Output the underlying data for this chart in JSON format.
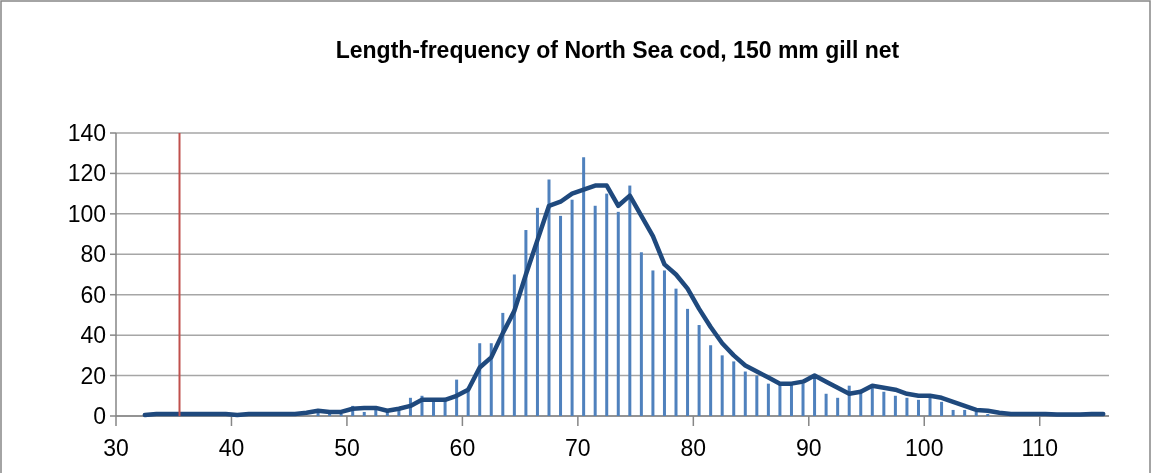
{
  "chart_data": {
    "type": "bar",
    "title": "Length-frequency of North Sea cod, 150 mm gill net",
    "xlim": [
      30,
      116
    ],
    "xticks": [
      30,
      40,
      50,
      60,
      70,
      80,
      90,
      100,
      110
    ],
    "ylim": [
      0,
      140
    ],
    "yticks": [
      0,
      20,
      40,
      60,
      80,
      100,
      120,
      140
    ],
    "grid": "y",
    "ref_lines": [
      {
        "axis": "x",
        "value": 35.5,
        "color": "#c0504d"
      }
    ],
    "series": [
      {
        "color": "#4f81bd",
        "x": [
          47.5,
          48.5,
          49.5,
          50.5,
          51.5,
          52.5,
          53.5,
          54.5,
          55.5,
          56.5,
          57.5,
          58.5,
          59.5,
          60.5,
          61.5,
          62.5,
          63.5,
          64.5,
          65.5,
          66.5,
          67.5,
          68.5,
          69.5,
          70.5,
          71.5,
          72.5,
          73.5,
          74.5,
          75.5,
          76.5,
          77.5,
          78.5,
          79.5,
          80.5,
          81.5,
          82.5,
          83.5,
          84.5,
          85.5,
          86.5,
          87.5,
          88.5,
          89.5,
          90.5,
          91.5,
          92.5,
          93.5,
          94.5,
          95.5,
          96.5,
          97.5,
          98.5,
          99.5,
          100.5,
          101.5,
          102.5,
          103.5,
          104.5,
          105.5
        ],
        "values": [
          2,
          1,
          1,
          5,
          2,
          3,
          2,
          3,
          9,
          10,
          8,
          9,
          18,
          14,
          36,
          36,
          51,
          70,
          92,
          103,
          117,
          99,
          107,
          128,
          104,
          110,
          101,
          114,
          81,
          72,
          72,
          63,
          53,
          45,
          35,
          30,
          27,
          22,
          20,
          16,
          16,
          16,
          16,
          20,
          11,
          9,
          15,
          13,
          14,
          12,
          10,
          9,
          8,
          9,
          7,
          3,
          3,
          2,
          1
        ]
      },
      {
        "type": "line",
        "color": "#1f497d",
        "x": [
          32.5,
          33.5,
          34.5,
          35.5,
          36.5,
          37.5,
          38.5,
          39.5,
          40.5,
          41.5,
          42.5,
          43.5,
          44.5,
          45.5,
          46.5,
          47.5,
          48.5,
          49.5,
          50.5,
          51.5,
          52.5,
          53.5,
          54.5,
          55.5,
          56.5,
          57.5,
          58.5,
          59.5,
          60.5,
          61.5,
          62.5,
          63.5,
          64.5,
          65.5,
          66.5,
          67.5,
          68.5,
          69.5,
          70.5,
          71.5,
          72.5,
          73.5,
          74.5,
          75.5,
          76.5,
          77.5,
          78.5,
          79.5,
          80.5,
          81.5,
          82.5,
          83.5,
          84.5,
          85.5,
          86.5,
          87.5,
          88.5,
          89.5,
          90.5,
          91.5,
          92.5,
          93.5,
          94.5,
          95.5,
          96.5,
          97.5,
          98.5,
          99.5,
          100.5,
          101.5,
          102.5,
          103.5,
          104.5,
          105.5,
          106.5,
          107.5,
          108.5,
          109.5,
          110.5,
          111.5,
          112.5,
          113.5,
          114.5,
          115.5
        ],
        "values": [
          0.5,
          1,
          1,
          1,
          1,
          1,
          1,
          1,
          0.5,
          1,
          1,
          1,
          1,
          1,
          1.6,
          2.6,
          2,
          2,
          3.6,
          4,
          4,
          2.6,
          3.6,
          5,
          8,
          8,
          8,
          10,
          13,
          24,
          29,
          41,
          52,
          70,
          87,
          104,
          106,
          110,
          112,
          114,
          114,
          104,
          109,
          99,
          89,
          75,
          70,
          63,
          53,
          44,
          36,
          30,
          25,
          22,
          19,
          16,
          16,
          17,
          20,
          17,
          14,
          11,
          12,
          15,
          14,
          13,
          11,
          10,
          10,
          9,
          7,
          5,
          3,
          2.6,
          1.6,
          1,
          1,
          1,
          1,
          0.8,
          0.8,
          0.8,
          1,
          1
        ]
      }
    ]
  }
}
